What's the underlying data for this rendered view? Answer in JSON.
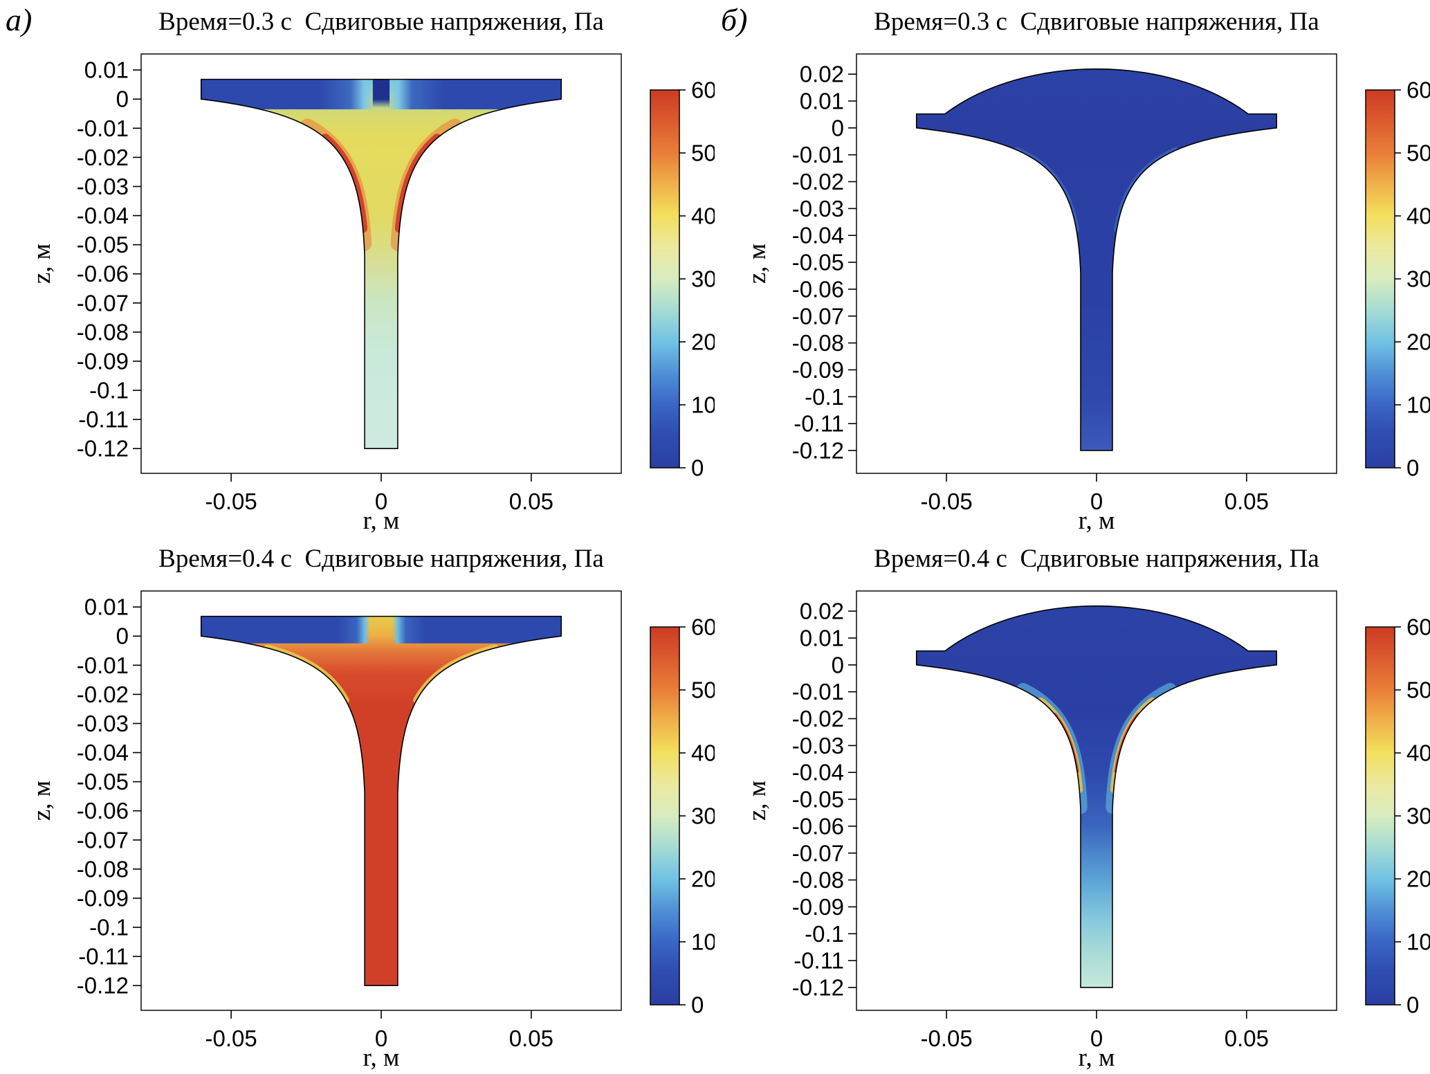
{
  "chart_data": {
    "type": "heatmap",
    "figure_title": "Сдвиговые напряжения, Па",
    "colorbar": {
      "min": 0,
      "max": 60,
      "ticks": [
        0,
        10,
        20,
        30,
        40,
        50,
        60
      ]
    },
    "colormap_stops": [
      [
        0,
        "#2b3fa3"
      ],
      [
        0.09,
        "#2f4db1"
      ],
      [
        0.17,
        "#3a67c7"
      ],
      [
        0.25,
        "#4f90d6"
      ],
      [
        0.33,
        "#6fc1e4"
      ],
      [
        0.42,
        "#a7dcd3"
      ],
      [
        0.5,
        "#d8ecbf"
      ],
      [
        0.58,
        "#ece9a0"
      ],
      [
        0.67,
        "#f2df5b"
      ],
      [
        0.75,
        "#f0b14a"
      ],
      [
        0.83,
        "#ea8038"
      ],
      [
        0.92,
        "#db5a2e"
      ],
      [
        1,
        "#cc3b24"
      ]
    ],
    "shapes": {
      "flat": {
        "r_flange": 0.06,
        "z_top": 0.0068,
        "r_tube": 0.0055,
        "z_throat": -0.054,
        "z_bottom": -0.12,
        "c1": [
          0.017,
          -0.0055
        ],
        "c2": [
          0.0068,
          -0.016
        ]
      },
      "domed": {
        "r_flange": 0.06,
        "tab_r_inner": 0.0505,
        "tab_z_top": 0.0052,
        "dome_ctrl": [
          0.024,
          0.0275
        ],
        "r_tube": 0.0053,
        "z_throat": -0.054,
        "z_bottom": -0.12,
        "c1": [
          0.017,
          -0.0055
        ],
        "c2": [
          0.0066,
          -0.016
        ]
      }
    },
    "panels": [
      {
        "id": "a-t0.3",
        "letter": "а)",
        "time_s": 0.3,
        "title": "Время=0.3 с  Сдвиговые напряжения, Па",
        "xlabel": "r, м",
        "ylabel": "z, м",
        "xrange": [
          -0.08,
          0.08
        ],
        "zrange": [
          0.0155,
          -0.1285
        ],
        "xticks": [
          "-0.05",
          "0",
          "0.05"
        ],
        "yticks": [
          "0.01",
          "0",
          "-0.01",
          "-0.02",
          "-0.03",
          "-0.04",
          "-0.05",
          "-0.06",
          "-0.07",
          "-0.08",
          "-0.09",
          "-0.1",
          "-0.11",
          "-0.12"
        ],
        "shape": "flat",
        "field_summary": "Stress ~0-10 Pa (blue) in flange, 30-45 Pa (yellow) in funnel neck, peaks ~55-60 Pa (red) along curved walls at z=-0.02..-0.045 m, ~20 Pa (pale cyan) in lower tube",
        "paint": {
          "base_stops": [
            [
              0.0068,
              "#79c6e3"
            ],
            [
              0.0008,
              "#a6d5b2"
            ],
            [
              -0.005,
              "#d6d96e"
            ],
            [
              -0.013,
              "#e4db5e"
            ],
            [
              -0.04,
              "#e2da62"
            ],
            [
              -0.055,
              "#d8dd92"
            ],
            [
              -0.07,
              "#cae6c4"
            ],
            [
              -0.086,
              "#c9e9d9"
            ],
            [
              -0.12,
              "#cfeae1"
            ]
          ],
          "flange": {
            "z": [
              0.0068,
              -0.0035
            ],
            "stops": [
              [
                0,
                "#2e49ae"
              ],
              [
                0.33,
                "#2e49ae"
              ],
              [
                0.415,
                "#3e6ac0"
              ],
              [
                0.452,
                "#7cc6e6"
              ],
              [
                0.481,
                "rgba(124,198,230,0)"
              ],
              [
                0.519,
                "rgba(124,198,230,0)"
              ],
              [
                0.548,
                "#7cc6e6"
              ],
              [
                0.585,
                "#3e6ac0"
              ],
              [
                0.67,
                "#2e49ae"
              ],
              [
                1,
                "#2e49ae"
              ]
            ]
          },
          "center_stripe": {
            "halfwidth": 0.0028,
            "z": [
              0.0068,
              -0.003
            ],
            "color": "#1e3190"
          },
          "edge_strokes": [
            {
              "color": "#e8823c",
              "width": 22,
              "z": [
                -0.009,
                -0.05
              ],
              "opacity": 0.6
            },
            {
              "color": "#cf3e2a",
              "width": 13,
              "z": [
                -0.013,
                -0.045
              ],
              "opacity": 0.95
            }
          ]
        }
      },
      {
        "id": "b-t0.3",
        "letter": "б)",
        "time_s": 0.3,
        "title": "Время=0.3 с  Сдвиговые напряжения, Па",
        "xlabel": "r, м",
        "ylabel": "z, м",
        "xrange": [
          -0.08,
          0.08
        ],
        "zrange": [
          0.0275,
          -0.1285
        ],
        "xticks": [
          "-0.05",
          "0",
          "0.05"
        ],
        "yticks": [
          "0.02",
          "0.01",
          "0",
          "-0.01",
          "-0.02",
          "-0.03",
          "-0.04",
          "-0.05",
          "-0.06",
          "-0.07",
          "-0.08",
          "-0.09",
          "-0.1",
          "-0.11",
          "-0.12"
        ],
        "shape": "domed",
        "field_summary": "Stress ~0-5 Pa (dark blue) over almost the whole domain",
        "paint": {
          "base_stops": [
            [
              0.0225,
              "#2c42a7"
            ],
            [
              0,
              "#2b3fa3"
            ],
            [
              -0.06,
              "#2b40a4"
            ],
            [
              -0.1,
              "#2f48ab"
            ],
            [
              -0.118,
              "#3a58b7"
            ],
            [
              -0.12,
              "#3f5ebb"
            ]
          ],
          "edge_strokes": [
            {
              "color": "#3f64bf",
              "width": 8,
              "z": [
                -0.008,
                -0.038
              ],
              "opacity": 0.85
            }
          ]
        }
      },
      {
        "id": "a-t0.4",
        "letter": "",
        "time_s": 0.4,
        "title": "Время=0.4 с  Сдвиговые напряжения, Па",
        "xlabel": "r, м",
        "ylabel": "z, м",
        "xrange": [
          -0.08,
          0.08
        ],
        "zrange": [
          0.0155,
          -0.1285
        ],
        "xticks": [
          "-0.05",
          "0",
          "0.05"
        ],
        "yticks": [
          "0.01",
          "0",
          "-0.01",
          "-0.02",
          "-0.03",
          "-0.04",
          "-0.05",
          "-0.06",
          "-0.07",
          "-0.08",
          "-0.09",
          "-0.1",
          "-0.11",
          "-0.12"
        ],
        "shape": "flat",
        "field_summary": "Stress ~0-10 Pa (blue) in flange, ~40 Pa (yellow) column above inlet, ~55-60 Pa (red) throughout neck and tube",
        "paint": {
          "base_stops": [
            [
              0.0068,
              "#e7cd4d"
            ],
            [
              0.0005,
              "#ecb244"
            ],
            [
              -0.006,
              "#e3723a"
            ],
            [
              -0.013,
              "#d74b2c"
            ],
            [
              -0.025,
              "#d04028"
            ],
            [
              -0.12,
              "#d04028"
            ]
          ],
          "flange": {
            "z": [
              0.0068,
              -0.0025
            ],
            "stops": [
              [
                0,
                "#2e49ae"
              ],
              [
                0.38,
                "#2e49ae"
              ],
              [
                0.432,
                "#3a64be"
              ],
              [
                0.455,
                "#6fc0e2"
              ],
              [
                0.469,
                "rgba(111,192,226,0)"
              ],
              [
                0.531,
                "rgba(111,192,226,0)"
              ],
              [
                0.545,
                "#6fc0e2"
              ],
              [
                0.568,
                "#3a64be"
              ],
              [
                0.62,
                "#2e49ae"
              ],
              [
                1,
                "#2e49ae"
              ]
            ]
          },
          "edge_strokes": [
            {
              "color": "#e6cd52",
              "width": 10,
              "z": [
                -0.004,
                -0.022
              ],
              "opacity": 0.85
            }
          ]
        }
      },
      {
        "id": "b-t0.4",
        "letter": "",
        "time_s": 0.4,
        "title": "Время=0.4 с  Сдвиговые напряжения, Па",
        "xlabel": "r, м",
        "ylabel": "z, м",
        "xrange": [
          -0.08,
          0.08
        ],
        "zrange": [
          0.0275,
          -0.1285
        ],
        "xticks": [
          "-0.05",
          "0",
          "0.05"
        ],
        "yticks": [
          "0.02",
          "0.01",
          "0",
          "-0.01",
          "-0.02",
          "-0.03",
          "-0.04",
          "-0.05",
          "-0.06",
          "-0.07",
          "-0.08",
          "-0.09",
          "-0.1",
          "-0.11",
          "-0.12"
        ],
        "shape": "domed",
        "field_summary": "Mostly ~0-10 Pa (dark blue); thin 40-60 Pa (yellow-red) streaks along throat walls; ~15-25 Pa (cyan) in lower tube",
        "paint": {
          "base_stops": [
            [
              0.0225,
              "#2c42a7"
            ],
            [
              -0.015,
              "#2b3fa3"
            ],
            [
              -0.04,
              "#2e49ad"
            ],
            [
              -0.06,
              "#3a66bf"
            ],
            [
              -0.08,
              "#5ba4d6"
            ],
            [
              -0.095,
              "#86cade"
            ],
            [
              -0.108,
              "#abdcd6"
            ],
            [
              -0.12,
              "#c6e8dc"
            ]
          ],
          "edge_strokes": [
            {
              "color": "#5aa6d8",
              "width": 20,
              "z": [
                -0.009,
                -0.054
              ],
              "opacity": 0.75
            },
            {
              "color": "#e4c24b",
              "width": 10,
              "z": [
                -0.013,
                -0.047
              ],
              "opacity": 0.9
            },
            {
              "color": "#cf4428",
              "width": 5,
              "z": [
                -0.018,
                -0.04
              ],
              "opacity": 0.95
            }
          ]
        }
      }
    ]
  }
}
